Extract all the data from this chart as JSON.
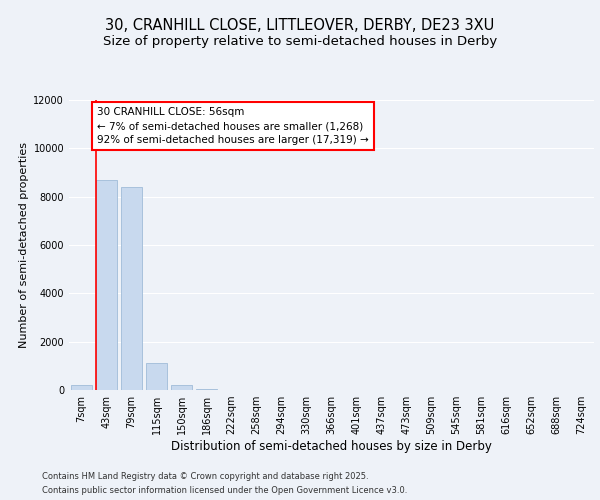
{
  "title_line1": "30, CRANHILL CLOSE, LITTLEOVER, DERBY, DE23 3XU",
  "title_line2": "Size of property relative to semi-detached houses in Derby",
  "xlabel": "Distribution of semi-detached houses by size in Derby",
  "ylabel": "Number of semi-detached properties",
  "categories": [
    "7sqm",
    "43sqm",
    "79sqm",
    "115sqm",
    "150sqm",
    "186sqm",
    "222sqm",
    "258sqm",
    "294sqm",
    "330sqm",
    "366sqm",
    "401sqm",
    "437sqm",
    "473sqm",
    "509sqm",
    "545sqm",
    "581sqm",
    "616sqm",
    "652sqm",
    "688sqm",
    "724sqm"
  ],
  "values": [
    200,
    8700,
    8400,
    1100,
    200,
    50,
    5,
    0,
    0,
    0,
    0,
    0,
    0,
    0,
    0,
    0,
    0,
    0,
    0,
    0,
    0
  ],
  "bar_color": "#c8d9ee",
  "bar_edge_color": "#a0bcd8",
  "red_line_x": 0.5,
  "annotation_title": "30 CRANHILL CLOSE: 56sqm",
  "annotation_line1": "← 7% of semi-detached houses are smaller (1,268)",
  "annotation_line2": "92% of semi-detached houses are larger (17,319) →",
  "ylim": [
    0,
    12000
  ],
  "yticks": [
    0,
    2000,
    4000,
    6000,
    8000,
    10000,
    12000
  ],
  "background_color": "#eef2f8",
  "plot_background": "#eef2f8",
  "footer_line1": "Contains HM Land Registry data © Crown copyright and database right 2025.",
  "footer_line2": "Contains public sector information licensed under the Open Government Licence v3.0.",
  "grid_color": "#ffffff",
  "title_fontsize": 10.5,
  "subtitle_fontsize": 9.5,
  "ylabel_fontsize": 8,
  "xlabel_fontsize": 8.5,
  "tick_fontsize": 7,
  "annotation_fontsize": 7.5,
  "footer_fontsize": 6
}
